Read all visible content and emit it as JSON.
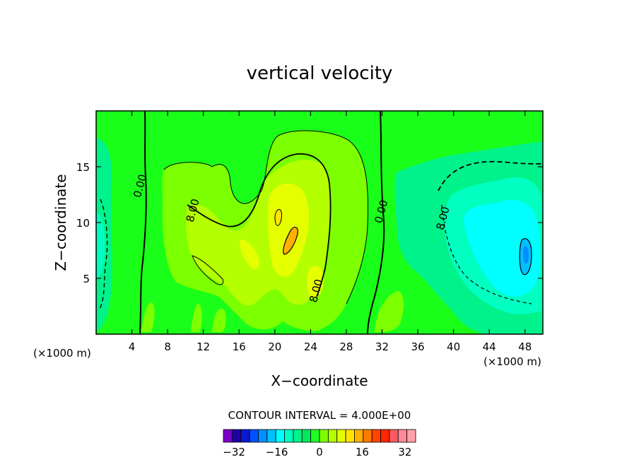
{
  "chart_data": {
    "type": "heatmap",
    "title": "vertical velocity",
    "xlabel": "X−coordinate",
    "ylabel": "Z−coordinate",
    "x_unit_left": "(×1000 m)",
    "x_unit_right": "(×1000 m)",
    "xlim": [
      0,
      50
    ],
    "ylim": [
      0,
      20
    ],
    "x_ticks": [
      4,
      8,
      12,
      16,
      20,
      24,
      28,
      32,
      36,
      40,
      44,
      48
    ],
    "x_tick_labels": [
      "4",
      "8",
      "12",
      "16",
      "20",
      "24",
      "28",
      "32",
      "36",
      "40",
      "44",
      "48"
    ],
    "y_ticks": [
      5,
      10,
      15
    ],
    "y_tick_labels": [
      "5",
      "10",
      "15"
    ],
    "contour_interval_text": "CONTOUR INTERVAL = 4.000E+00",
    "contour_labels": [
      {
        "text": "0.00",
        "x": 5.3,
        "z": 13.2
      },
      {
        "text": "8.00",
        "x": 11.2,
        "z": 11.0
      },
      {
        "text": "8.00",
        "x": 25.0,
        "z": 3.8
      },
      {
        "text": "0.00",
        "x": 32.3,
        "z": 10.9
      },
      {
        "text": "8.00",
        "x": 39.2,
        "z": 10.3
      }
    ],
    "colorbar": {
      "levels": [
        -36,
        -32,
        -28,
        -24,
        -20,
        -16,
        -12,
        -8,
        -4,
        0,
        4,
        8,
        12,
        16,
        20,
        24,
        28,
        32,
        36
      ],
      "colors": [
        "#7a00c8",
        "#1e00a6",
        "#0a1ad0",
        "#0050ff",
        "#0090ff",
        "#00c0ff",
        "#00ffff",
        "#00ffc0",
        "#00f28a",
        "#00e85a",
        "#20ff20",
        "#7cff00",
        "#b4ff00",
        "#e6ff00",
        "#ffe400",
        "#ffb000",
        "#ff7a00",
        "#ff4400",
        "#ff2800",
        "#ff5a64",
        "#ff8c96",
        "#ffa0a8"
      ],
      "tick_values": [
        -32,
        -16,
        0,
        16,
        32
      ],
      "tick_labels": [
        "−32",
        "−16",
        "0",
        "16",
        "32"
      ]
    }
  }
}
